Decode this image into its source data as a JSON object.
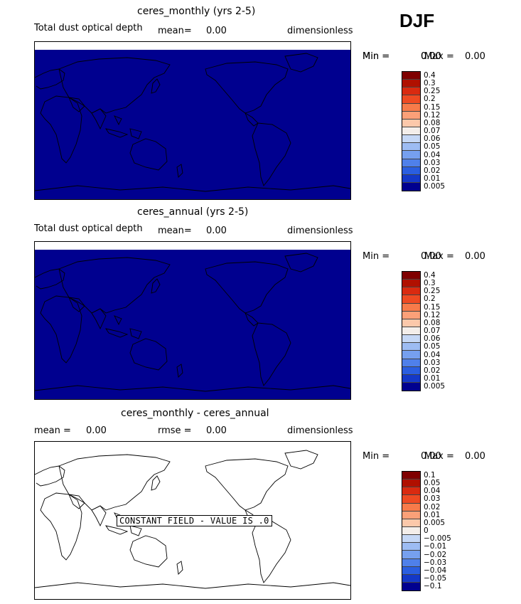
{
  "season": "DJF",
  "panels": [
    {
      "title": "ceres_monthly (yrs 2-5)",
      "variable": "Total dust optical depth",
      "stat1_label": "mean=",
      "stat1_value": "0.00",
      "units": "dimensionless",
      "min_label": "Min =",
      "min_value": "0.00",
      "max_label": "Max =",
      "max_value": "0.00",
      "fill_color": "#00008f",
      "colorbar_levels": [
        "0.4",
        "0.3",
        "0.25",
        "0.2",
        "0.15",
        "0.12",
        "0.08",
        "0.07",
        "0.06",
        "0.05",
        "0.04",
        "0.03",
        "0.02",
        "0.01",
        "0.005"
      ],
      "colorbar_colors": [
        "#7f0000",
        "#b01000",
        "#d92a10",
        "#ee4a22",
        "#f77b4a",
        "#fba078",
        "#fcc8aa",
        "#f4eeea",
        "#c6d8f6",
        "#9dbcf3",
        "#76a0ef",
        "#4f80ea",
        "#2a5ee0",
        "#1438c8",
        "#00008f"
      ]
    },
    {
      "title": "ceres_annual (yrs 2-5)",
      "variable": "Total dust optical depth",
      "stat1_label": "mean=",
      "stat1_value": "0.00",
      "units": "dimensionless",
      "min_label": "Min =",
      "min_value": "0.00",
      "max_label": "Max =",
      "max_value": "0.00",
      "fill_color": "#00008f",
      "colorbar_levels": [
        "0.4",
        "0.3",
        "0.25",
        "0.2",
        "0.15",
        "0.12",
        "0.08",
        "0.07",
        "0.06",
        "0.05",
        "0.04",
        "0.03",
        "0.02",
        "0.01",
        "0.005"
      ],
      "colorbar_colors": [
        "#7f0000",
        "#b01000",
        "#d92a10",
        "#ee4a22",
        "#f77b4a",
        "#fba078",
        "#fcc8aa",
        "#f4eeea",
        "#c6d8f6",
        "#9dbcf3",
        "#76a0ef",
        "#4f80ea",
        "#2a5ee0",
        "#1438c8",
        "#00008f"
      ]
    },
    {
      "title": "ceres_monthly - ceres_annual",
      "stat1_label": "mean =",
      "stat1_value": "0.00",
      "stat2_label": "rmse =",
      "stat2_value": "0.00",
      "units": "dimensionless",
      "min_label": "Min =",
      "min_value": "0.00",
      "max_label": "Max =",
      "max_value": "0.00",
      "fill_color": "#ffffff",
      "constant_note": "CONSTANT FIELD - VALUE IS .0",
      "colorbar_levels": [
        "0.1",
        "0.05",
        "0.04",
        "0.03",
        "0.02",
        "0.01",
        "0.005",
        "0",
        "−0.005",
        "−0.01",
        "−0.02",
        "−0.03",
        "−0.04",
        "−0.05",
        "−0.1"
      ],
      "colorbar_colors": [
        "#7f0000",
        "#b01000",
        "#d92a10",
        "#ee4a22",
        "#f77b4a",
        "#fba078",
        "#fcc8aa",
        "#f4eeea",
        "#c6d8f6",
        "#9dbcf3",
        "#76a0ef",
        "#4f80ea",
        "#2a5ee0",
        "#1438c8",
        "#00008f"
      ]
    }
  ]
}
